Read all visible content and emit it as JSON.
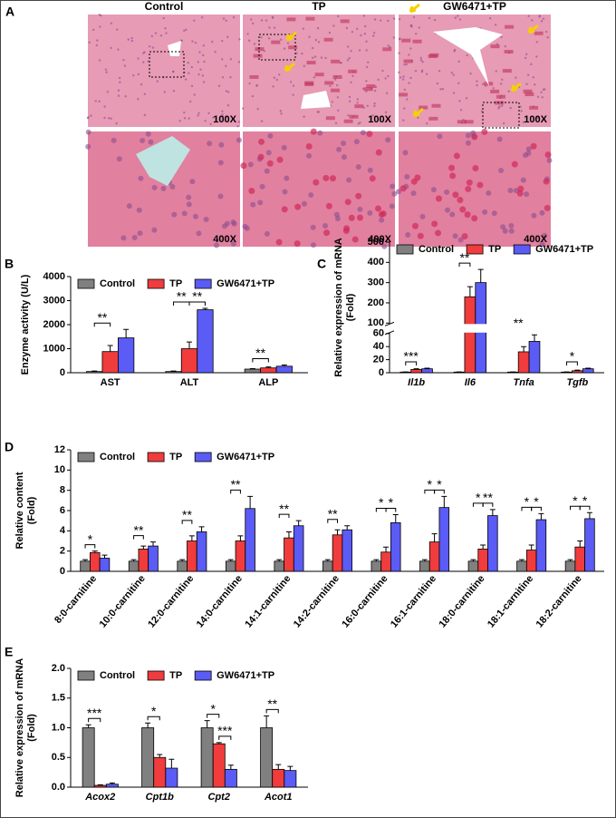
{
  "histology": {
    "label": "A",
    "columns": [
      "Control",
      "TP",
      "GW6471+TP"
    ],
    "magnifications": [
      "100X",
      "400X"
    ]
  },
  "chart_data": [
    {
      "type": "bar",
      "panel": "B",
      "y_label": [
        "Enzyme activity (U/L)"
      ],
      "categories": [
        "AST",
        "ALT",
        "ALP"
      ],
      "category_style": "normal",
      "series": [
        {
          "name": "Control",
          "color": "#808080",
          "values": [
            50,
            50,
            150
          ],
          "errors": [
            20,
            20,
            20
          ],
          "stars": [
            null,
            null,
            null
          ]
        },
        {
          "name": "TP",
          "color": "#f03c3c",
          "values": [
            880,
            1000,
            200
          ],
          "errors": [
            250,
            280,
            40
          ],
          "stars": [
            "**",
            "**",
            "**"
          ]
        },
        {
          "name": "GW6471+TP",
          "color": "#5b5bf5",
          "values": [
            1450,
            2620,
            270
          ],
          "errors": [
            350,
            60,
            50
          ],
          "stars": [
            null,
            "**",
            null
          ]
        }
      ],
      "ylim": [
        0,
        4000
      ],
      "yticks": [
        0,
        1000,
        2000,
        3000,
        4000
      ]
    },
    {
      "type": "bar",
      "panel": "C",
      "y_label": [
        "Relative expression of mRNA",
        "(Fold)"
      ],
      "categories": [
        "Il1b",
        "Il6",
        "Tnfa",
        "Tgfb"
      ],
      "category_style": "italic",
      "series": [
        {
          "name": "Control",
          "color": "#808080",
          "values": [
            1,
            1,
            1,
            1
          ],
          "errors": [
            0.2,
            0.2,
            0.2,
            0.2
          ],
          "stars": [
            null,
            null,
            null,
            null
          ]
        },
        {
          "name": "TP",
          "color": "#f03c3c",
          "values": [
            5,
            230,
            32,
            3
          ],
          "errors": [
            1,
            50,
            8,
            1
          ],
          "stars": [
            "***",
            "**",
            "**",
            "*"
          ]
        },
        {
          "name": "GW6471+TP",
          "color": "#5b5bf5",
          "values": [
            6,
            300,
            48,
            6
          ],
          "errors": [
            1,
            65,
            10,
            1
          ],
          "stars": [
            null,
            null,
            null,
            null
          ]
        }
      ],
      "ylim": [
        0,
        500
      ],
      "axis_break": [
        60,
        100
      ],
      "yticks": [
        0,
        20,
        40,
        60,
        100,
        200,
        300,
        400,
        500
      ]
    },
    {
      "type": "bar",
      "panel": "D",
      "y_label": [
        "Relative content",
        "(Fold)"
      ],
      "categories": [
        "8:0-carnitine",
        "10:0-carnitine",
        "12:0-carnitine",
        "14:0-carnitine",
        "14:1-carnitine",
        "14:2-carnitine",
        "16:0-carnitine",
        "16:1-carnitine",
        "18:0-carnitine",
        "18:1-carnitine",
        "18:2-carnitine"
      ],
      "category_style": "normal",
      "x_label_rotation": -50,
      "series": [
        {
          "name": "Control",
          "color": "#808080",
          "values": [
            1,
            1,
            1,
            1,
            1,
            1,
            1,
            1,
            1,
            1,
            1
          ],
          "errors": [
            0.15,
            0.15,
            0.15,
            0.15,
            0.15,
            0.15,
            0.15,
            0.15,
            0.15,
            0.15,
            0.15
          ],
          "stars": [
            null,
            null,
            null,
            null,
            null,
            null,
            null,
            null,
            null,
            null,
            null
          ]
        },
        {
          "name": "TP",
          "color": "#f03c3c",
          "values": [
            1.85,
            2.2,
            3.0,
            3.0,
            3.3,
            3.6,
            1.9,
            2.9,
            2.2,
            2.1,
            2.4
          ],
          "errors": [
            0.15,
            0.3,
            0.5,
            0.5,
            0.6,
            0.5,
            0.5,
            0.8,
            0.4,
            0.5,
            0.6
          ],
          "stars": [
            "*",
            "**",
            "**",
            "**",
            "**",
            "**",
            "*",
            "*",
            "*",
            "*",
            "*"
          ]
        },
        {
          "name": "GW6471+TP",
          "color": "#5b5bf5",
          "values": [
            1.3,
            2.5,
            3.9,
            6.2,
            4.5,
            4.1,
            4.8,
            6.3,
            5.5,
            5.1,
            5.2
          ],
          "errors": [
            0.3,
            0.4,
            0.5,
            1.2,
            0.5,
            0.4,
            0.8,
            1.1,
            0.6,
            0.6,
            0.6
          ],
          "stars": [
            null,
            null,
            null,
            null,
            null,
            null,
            "*",
            "*",
            "**",
            "*",
            "*"
          ]
        }
      ],
      "ylim": [
        0,
        12
      ],
      "yticks": [
        0,
        2,
        4,
        6,
        8,
        10,
        12
      ]
    },
    {
      "type": "bar",
      "panel": "E",
      "y_label": [
        "Relative expression of mRNA",
        "(Fold)"
      ],
      "categories": [
        "Acox2",
        "Cpt1b",
        "Cpt2",
        "Acot1"
      ],
      "category_style": "italic",
      "series": [
        {
          "name": "Control",
          "color": "#808080",
          "values": [
            1,
            1,
            1,
            1
          ],
          "errors": [
            0.05,
            0.08,
            0.12,
            0.2
          ],
          "stars": [
            null,
            null,
            null,
            null
          ]
        },
        {
          "name": "TP",
          "color": "#f03c3c",
          "values": [
            0.03,
            0.5,
            0.73,
            0.3
          ],
          "errors": [
            0.01,
            0.05,
            0.02,
            0.08
          ],
          "stars": [
            "***",
            "*",
            "*",
            "**"
          ]
        },
        {
          "name": "GW6471+TP",
          "color": "#5b5bf5",
          "values": [
            0.05,
            0.32,
            0.3,
            0.28
          ],
          "errors": [
            0.02,
            0.15,
            0.07,
            0.07
          ],
          "stars": [
            null,
            null,
            "***",
            null
          ]
        }
      ],
      "ylim": [
        0,
        2
      ],
      "yticks": [
        {
          "value": 0,
          "label": "0.0"
        },
        {
          "value": 0.5,
          "label": "0.5"
        },
        {
          "value": 1,
          "label": "1.0"
        },
        {
          "value": 1.5,
          "label": "1.5"
        },
        {
          "value": 2,
          "label": "2.0"
        }
      ]
    }
  ]
}
